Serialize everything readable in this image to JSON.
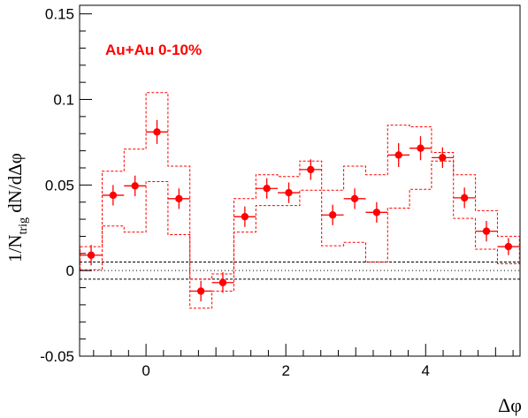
{
  "chart_data": {
    "type": "scatter",
    "annotation": "Au+Au 0-10%",
    "xlabel": "Δφ",
    "ylabel": {
      "prefix": "1/N",
      "subscript": "trig",
      "suffix": " dN/dΔφ"
    },
    "xlim": [
      -0.95,
      5.35
    ],
    "ylim": [
      -0.05,
      0.155
    ],
    "x_ticks": [
      {
        "value": 0,
        "label": "0"
      },
      {
        "value": 2,
        "label": "2"
      },
      {
        "value": 4,
        "label": "4"
      }
    ],
    "y_ticks": [
      {
        "value": -0.05,
        "label": "-0.05"
      },
      {
        "value": 0,
        "label": "0"
      },
      {
        "value": 0.05,
        "label": "0.05"
      },
      {
        "value": 0.1,
        "label": "0.1"
      },
      {
        "value": 0.15,
        "label": "0.15"
      }
    ],
    "bin_width": 0.314,
    "series": [
      {
        "color": "#ff0000",
        "points": [
          {
            "x": -0.785,
            "y": 0.009,
            "err": 0.006,
            "sys_low": 0.0005,
            "sys_high": 0.014
          },
          {
            "x": -0.471,
            "y": 0.044,
            "err": 0.006,
            "sys_low": 0.026,
            "sys_high": 0.058
          },
          {
            "x": -0.157,
            "y": 0.0495,
            "err": 0.006,
            "sys_low": 0.0225,
            "sys_high": 0.071
          },
          {
            "x": 0.157,
            "y": 0.081,
            "err": 0.007,
            "sys_low": 0.052,
            "sys_high": 0.104
          },
          {
            "x": 0.471,
            "y": 0.042,
            "err": 0.006,
            "sys_low": 0.021,
            "sys_high": 0.061
          },
          {
            "x": 0.785,
            "y": -0.012,
            "err": 0.006,
            "sys_low": -0.022,
            "sys_high": -0.005
          },
          {
            "x": 1.099,
            "y": -0.007,
            "err": 0.006,
            "sys_low": -0.012,
            "sys_high": -0.002
          },
          {
            "x": 1.414,
            "y": 0.0315,
            "err": 0.006,
            "sys_low": 0.0225,
            "sys_high": 0.042
          },
          {
            "x": 1.728,
            "y": 0.048,
            "err": 0.006,
            "sys_low": 0.038,
            "sys_high": 0.056
          },
          {
            "x": 2.042,
            "y": 0.0455,
            "err": 0.006,
            "sys_low": 0.038,
            "sys_high": 0.055
          },
          {
            "x": 2.356,
            "y": 0.059,
            "err": 0.006,
            "sys_low": 0.047,
            "sys_high": 0.064
          },
          {
            "x": 2.67,
            "y": 0.0325,
            "err": 0.006,
            "sys_low": 0.0145,
            "sys_high": 0.047
          },
          {
            "x": 2.985,
            "y": 0.042,
            "err": 0.006,
            "sys_low": 0.0165,
            "sys_high": 0.061
          },
          {
            "x": 3.299,
            "y": 0.034,
            "err": 0.006,
            "sys_low": 0.005,
            "sys_high": 0.056
          },
          {
            "x": 3.613,
            "y": 0.0675,
            "err": 0.007,
            "sys_low": 0.0365,
            "sys_high": 0.085
          },
          {
            "x": 3.927,
            "y": 0.0715,
            "err": 0.007,
            "sys_low": 0.0475,
            "sys_high": 0.084
          },
          {
            "x": 4.241,
            "y": 0.066,
            "err": 0.006,
            "sys_low": 0.064,
            "sys_high": 0.069
          },
          {
            "x": 4.555,
            "y": 0.0425,
            "err": 0.006,
            "sys_low": 0.0305,
            "sys_high": 0.056
          },
          {
            "x": 4.869,
            "y": 0.023,
            "err": 0.006,
            "sys_low": 0.0125,
            "sys_high": 0.035
          },
          {
            "x": 5.184,
            "y": 0.014,
            "err": 0.005,
            "sys_low": 0.004,
            "sys_high": 0.02
          }
        ]
      }
    ],
    "reference_lines": [
      {
        "y": 0.005,
        "style": "dashed",
        "color": "#000000"
      },
      {
        "y": -0.005,
        "style": "dashed",
        "color": "#000000"
      },
      {
        "y": 0,
        "style": "dotted",
        "color": "#000000"
      }
    ]
  }
}
